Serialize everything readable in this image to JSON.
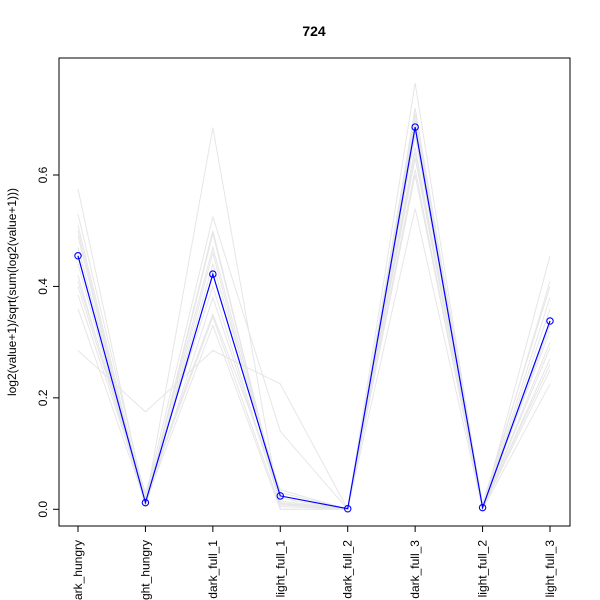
{
  "chart_data": {
    "type": "line",
    "title": "724",
    "xlabel": "",
    "ylabel": "log2(value+1)/sqrt(sum(log2(value+1)))",
    "categories": [
      "dark_hungry",
      "light_hungry",
      "dark_full_1",
      "light_full_1",
      "dark_full_2",
      "dark_full_3",
      "light_full_2",
      "light_full_3"
    ],
    "category_labels_shown": [
      "ark_hungry",
      "ght_hungry",
      "dark_full_1",
      "light_full_1",
      "dark_full_2",
      "dark_full_3",
      "light_full_2",
      "light_full_3"
    ],
    "ylim": [
      -0.03,
      0.81
    ],
    "yticks": [
      0.0,
      0.2,
      0.4,
      0.6
    ],
    "ytick_labels": [
      "0.0",
      "0.2",
      "0.4",
      "0.6"
    ],
    "grid": false,
    "legend": "none",
    "colors": {
      "highlight": "#0000ff",
      "background_series": "#e6e6e6",
      "axis": "#000000"
    },
    "series": [
      {
        "values": [
          0.455,
          0.012,
          0.422,
          0.024,
          0.001,
          0.686,
          0.003,
          0.338
        ],
        "highlight": true
      },
      {
        "values": [
          0.575,
          0.01,
          0.685,
          0.0,
          0.0,
          0.765,
          0.0,
          0.455
        ]
      },
      {
        "values": [
          0.285,
          0.175,
          0.285,
          0.225,
          0.0,
          0.54,
          0.0,
          0.225
        ]
      },
      {
        "values": [
          0.53,
          0.02,
          0.525,
          0.14,
          0.0,
          0.72,
          0.01,
          0.4
        ]
      },
      {
        "values": [
          0.5,
          0.005,
          0.495,
          0.01,
          0.0,
          0.7,
          0.0,
          0.36
        ]
      },
      {
        "values": [
          0.47,
          0.015,
          0.47,
          0.02,
          0.0,
          0.69,
          0.0,
          0.33
        ]
      },
      {
        "values": [
          0.44,
          0.008,
          0.44,
          0.03,
          0.0,
          0.67,
          0.005,
          0.32
        ]
      },
      {
        "values": [
          0.41,
          0.03,
          0.4,
          0.01,
          0.0,
          0.65,
          0.0,
          0.3
        ]
      },
      {
        "values": [
          0.385,
          0.02,
          0.345,
          0.005,
          0.0,
          0.61,
          0.0,
          0.29
        ]
      },
      {
        "values": [
          0.36,
          0.012,
          0.33,
          0.0,
          0.0,
          0.6,
          0.0,
          0.27
        ]
      },
      {
        "values": [
          0.42,
          0.006,
          0.38,
          0.015,
          0.0,
          0.64,
          0.002,
          0.25
        ]
      },
      {
        "values": [
          0.49,
          0.004,
          0.46,
          0.008,
          0.0,
          0.71,
          0.0,
          0.38
        ]
      },
      {
        "values": [
          0.51,
          0.01,
          0.5,
          0.012,
          0.0,
          0.68,
          0.0,
          0.41
        ]
      },
      {
        "values": [
          0.4,
          0.025,
          0.35,
          0.035,
          0.0,
          0.63,
          0.004,
          0.26
        ]
      }
    ]
  }
}
